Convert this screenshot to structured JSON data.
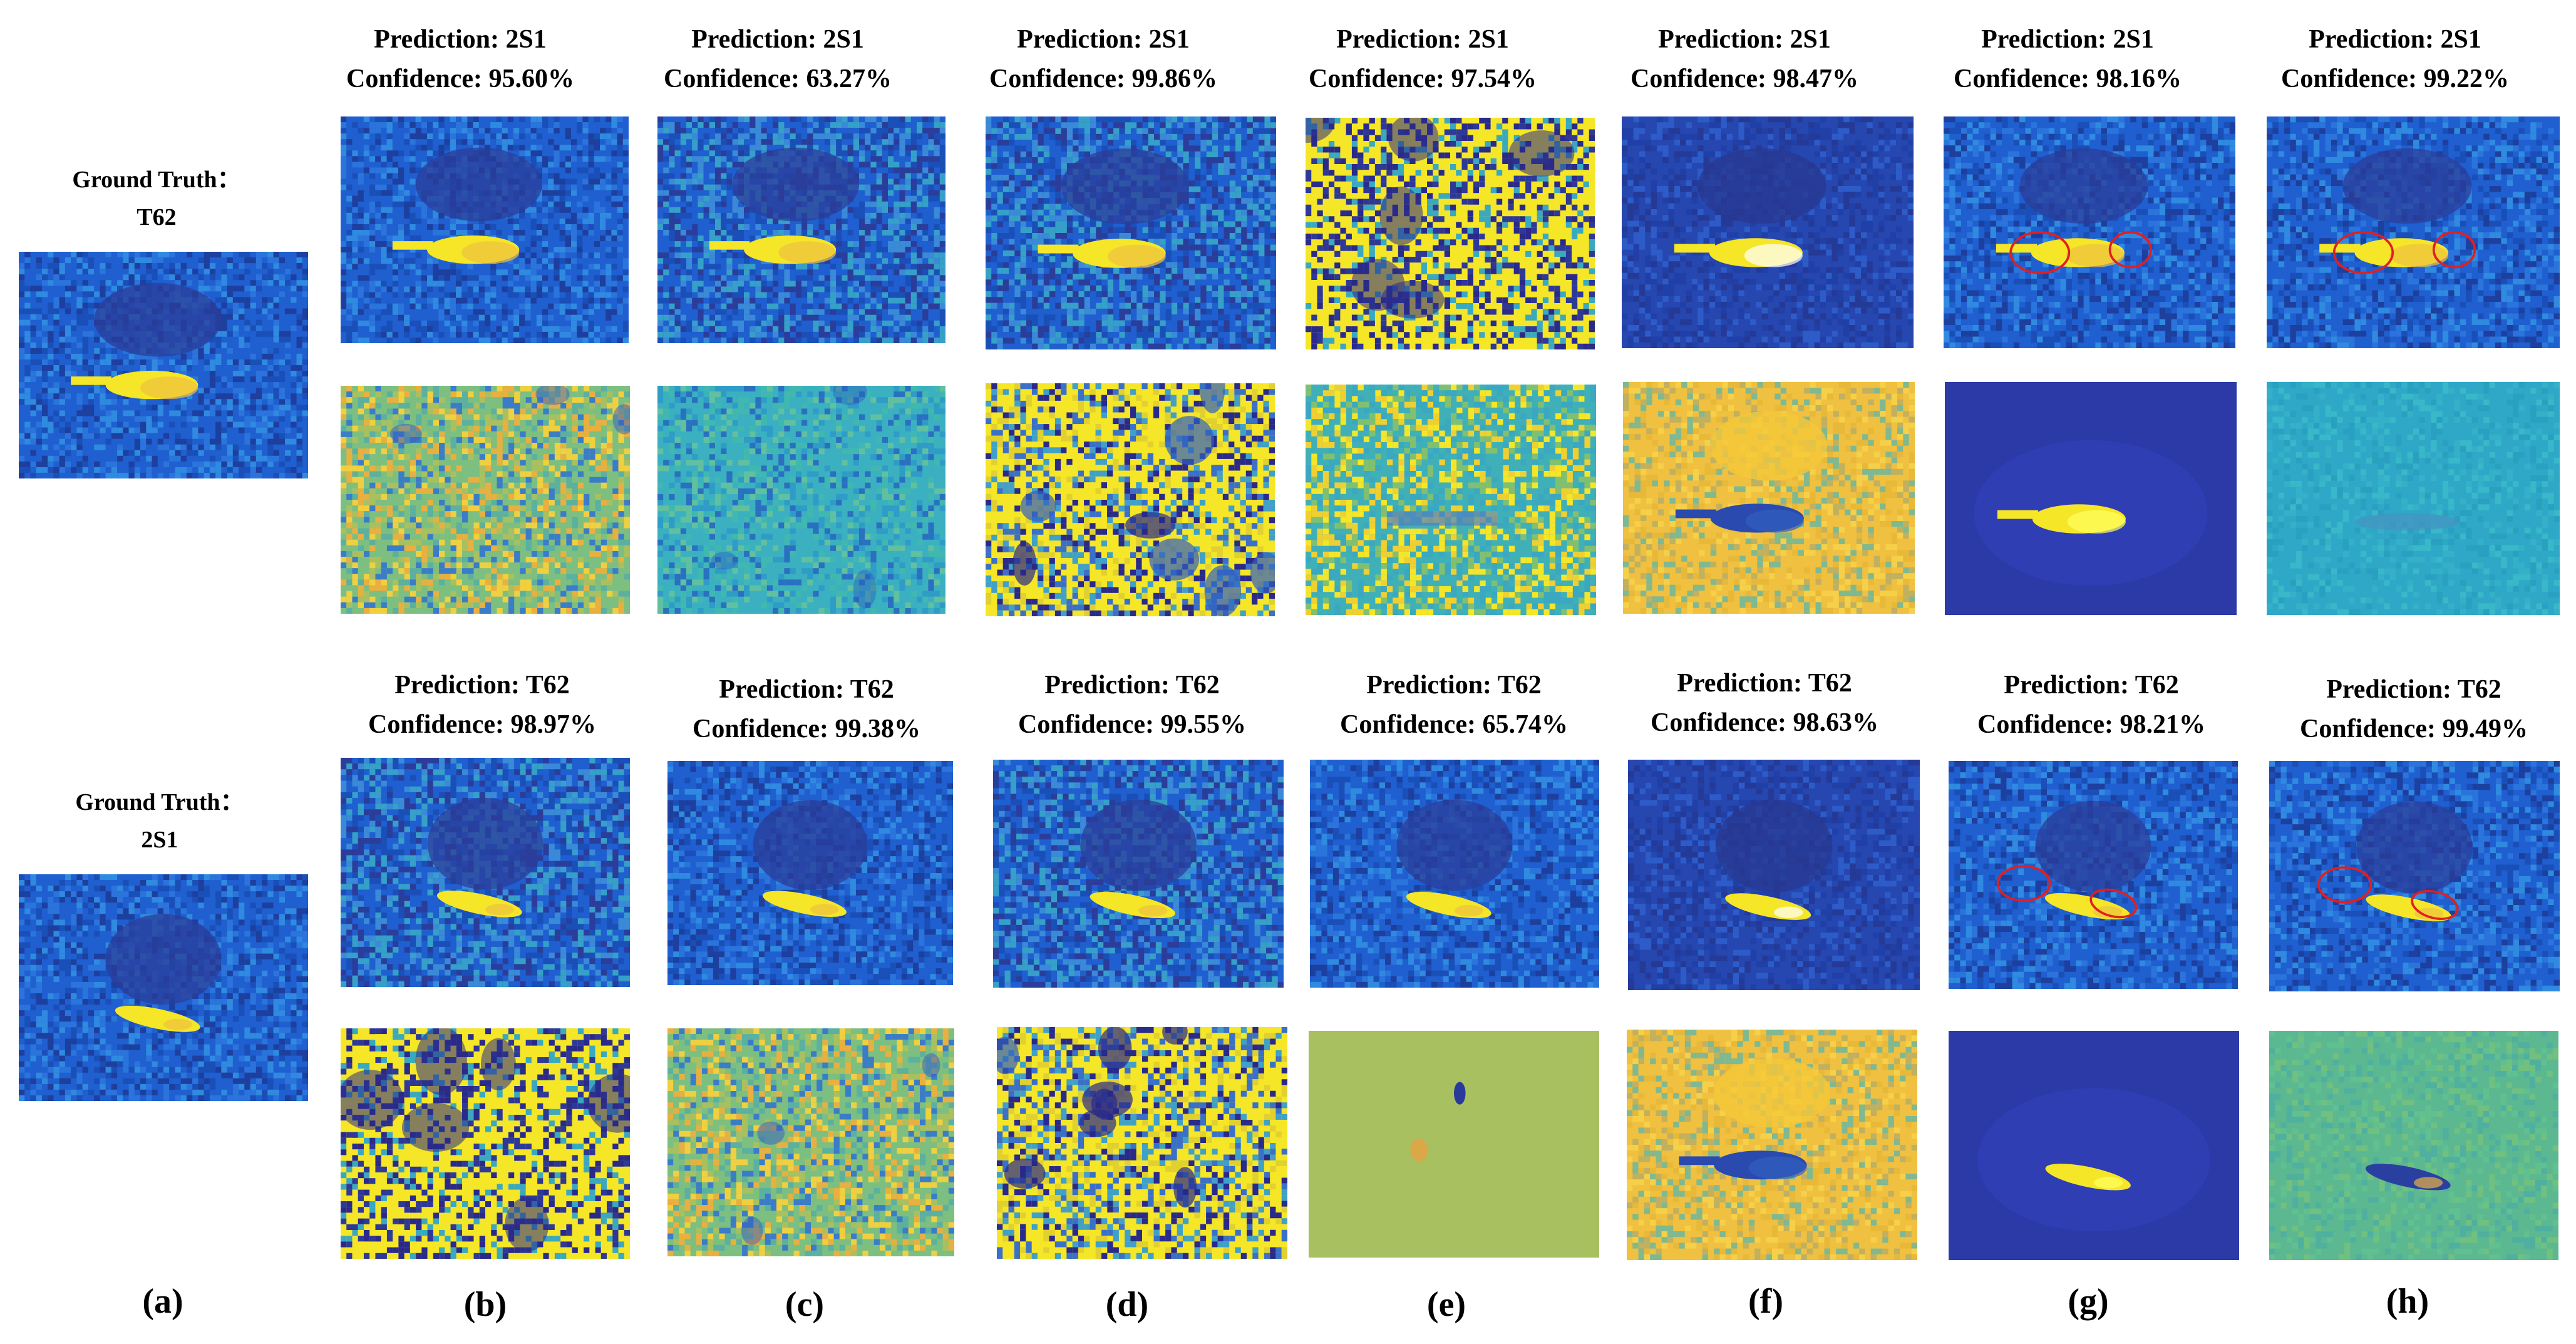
{
  "figure": {
    "rows": [
      {
        "ground_truth_label": "Ground Truth：",
        "ground_truth_class": "T62",
        "columns": [
          {
            "prediction": "Prediction:  2S1",
            "confidence": "Confidence:  95.60%"
          },
          {
            "prediction": "Prediction:  2S1",
            "confidence": "Confidence:  63.27%"
          },
          {
            "prediction": "Prediction:  2S1",
            "confidence": "Confidence:  99.86%"
          },
          {
            "prediction": "Prediction:  2S1",
            "confidence": "Confidence:  97.54%"
          },
          {
            "prediction": "Prediction:  2S1",
            "confidence": "Confidence:  98.47%"
          },
          {
            "prediction": "Prediction:  2S1",
            "confidence": "Confidence:  98.16%"
          },
          {
            "prediction": "Prediction:  2S1",
            "confidence": "Confidence:  99.22%"
          }
        ]
      },
      {
        "ground_truth_label": "Ground Truth：",
        "ground_truth_class": "2S1",
        "columns": [
          {
            "prediction": "Prediction: T62",
            "confidence": "Confidence:  98.97%"
          },
          {
            "prediction": "Prediction: T62",
            "confidence": "Confidence:  99.38%"
          },
          {
            "prediction": "Prediction: T62",
            "confidence": "Confidence:  99.55%"
          },
          {
            "prediction": "Prediction: T62",
            "confidence": "Confidence:  65.74%"
          },
          {
            "prediction": "Prediction: T62",
            "confidence": "Confidence:  98.63%"
          },
          {
            "prediction": "Prediction: T62",
            "confidence": "Confidence:  98.21%"
          },
          {
            "prediction": "Prediction: T62",
            "confidence": "Confidence:  99.49%"
          }
        ]
      }
    ],
    "panel_labels": [
      "(a)",
      "(b)",
      "(c)",
      "(d)",
      "(e)",
      "(f)",
      "(g)",
      "(h)"
    ]
  },
  "colors": {
    "background_blue": "#1f5fd0",
    "dark_blue": "#2b3d9a",
    "navy": "#2a2a8a",
    "yellow": "#f5e628",
    "orange_yellow": "#f0c040",
    "teal": "#3bb0c0",
    "green_yellow": "#a8c060",
    "circle_red": "#e02020"
  }
}
